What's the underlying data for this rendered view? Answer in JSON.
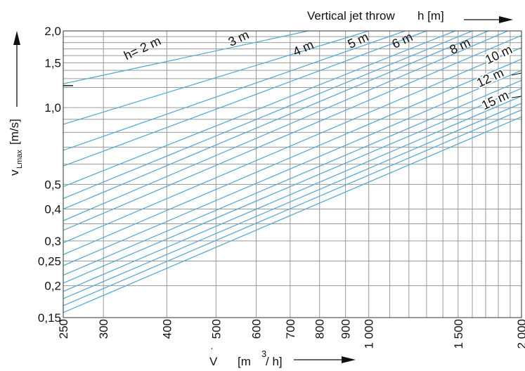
{
  "chart_data": {
    "type": "line",
    "x_axis": {
      "label_main": "V",
      "label_units": "[m",
      "label_exp": "3",
      "label_tail": "/ h]",
      "scale": "log",
      "range": [
        250,
        2000
      ],
      "ticks": [
        250,
        300,
        400,
        500,
        600,
        700,
        800,
        900,
        1000,
        1500,
        2000
      ],
      "tick_labels": [
        "250",
        "300",
        "400",
        "500",
        "600",
        "700",
        "800",
        "900",
        "1 000",
        "1 500",
        "2 000"
      ],
      "grid_minor": [
        1100,
        1200,
        1300,
        1400,
        1600,
        1700,
        1800,
        1900
      ]
    },
    "y_axis": {
      "label_main": "v",
      "label_sub": "Lmax",
      "label_units": "[m/s]",
      "scale": "log",
      "range": [
        0.15,
        2.0
      ],
      "ticks": [
        0.15,
        0.2,
        0.25,
        0.3,
        0.4,
        0.5,
        1.0,
        1.5,
        2.0
      ],
      "tick_labels": [
        "0,15",
        "0,2",
        "0,25",
        "0,3",
        "0,4",
        "0,5",
        "1,0",
        "1,5",
        "2,0"
      ],
      "grid_minor": [
        0.35,
        0.6,
        0.7,
        0.8,
        0.9,
        1.2,
        1.3,
        1.4,
        1.6,
        1.7,
        1.8,
        1.9
      ]
    },
    "top_label": {
      "text": "Vertical jet throw",
      "var": "h [m]"
    },
    "series": [
      {
        "name": "h= 2 m",
        "x": [
          250,
          760
        ],
        "y": [
          1.24,
          2.0
        ]
      },
      {
        "name": "",
        "x": [
          250,
          1000
        ],
        "y": [
          0.86,
          2.0
        ]
      },
      {
        "name": "3 m",
        "x": [
          250,
          1180
        ],
        "y": [
          0.68,
          2.0
        ]
      },
      {
        "name": "",
        "x": [
          250,
          1300
        ],
        "y": [
          0.59,
          2.0
        ]
      },
      {
        "name": "4 m",
        "x": [
          250,
          1480
        ],
        "y": [
          0.49,
          2.0
        ]
      },
      {
        "name": "",
        "x": [
          250,
          1600
        ],
        "y": [
          0.44,
          2.0
        ]
      },
      {
        "name": "5 m",
        "x": [
          250,
          1720
        ],
        "y": [
          0.4,
          2.0
        ]
      },
      {
        "name": "",
        "x": [
          250,
          1880
        ],
        "y": [
          0.36,
          2.0
        ]
      },
      {
        "name": "6 m",
        "x": [
          250,
          2000
        ],
        "y": [
          0.33,
          1.92
        ]
      },
      {
        "name": "",
        "x": [
          250,
          2000
        ],
        "y": [
          0.295,
          1.72
        ]
      },
      {
        "name": "8 m",
        "x": [
          250,
          2000
        ],
        "y": [
          0.265,
          1.55
        ]
      },
      {
        "name": "",
        "x": [
          250,
          2000
        ],
        "y": [
          0.24,
          1.4
        ]
      },
      {
        "name": "10 m",
        "x": [
          250,
          2000
        ],
        "y": [
          0.22,
          1.28
        ]
      },
      {
        "name": "",
        "x": [
          250,
          2000
        ],
        "y": [
          0.205,
          1.19
        ]
      },
      {
        "name": "12 m",
        "x": [
          250,
          2000
        ],
        "y": [
          0.19,
          1.11
        ]
      },
      {
        "name": "",
        "x": [
          250,
          2000
        ],
        "y": [
          0.178,
          1.04
        ]
      },
      {
        "name": "",
        "x": [
          250,
          2000
        ],
        "y": [
          0.167,
          0.98
        ]
      },
      {
        "name": "15 m",
        "x": [
          250,
          2000
        ],
        "y": [
          0.157,
          0.92
        ]
      }
    ],
    "colors": {
      "series": "#5aa9d6",
      "grid": "#9a9a9a",
      "text": "#111111"
    }
  }
}
